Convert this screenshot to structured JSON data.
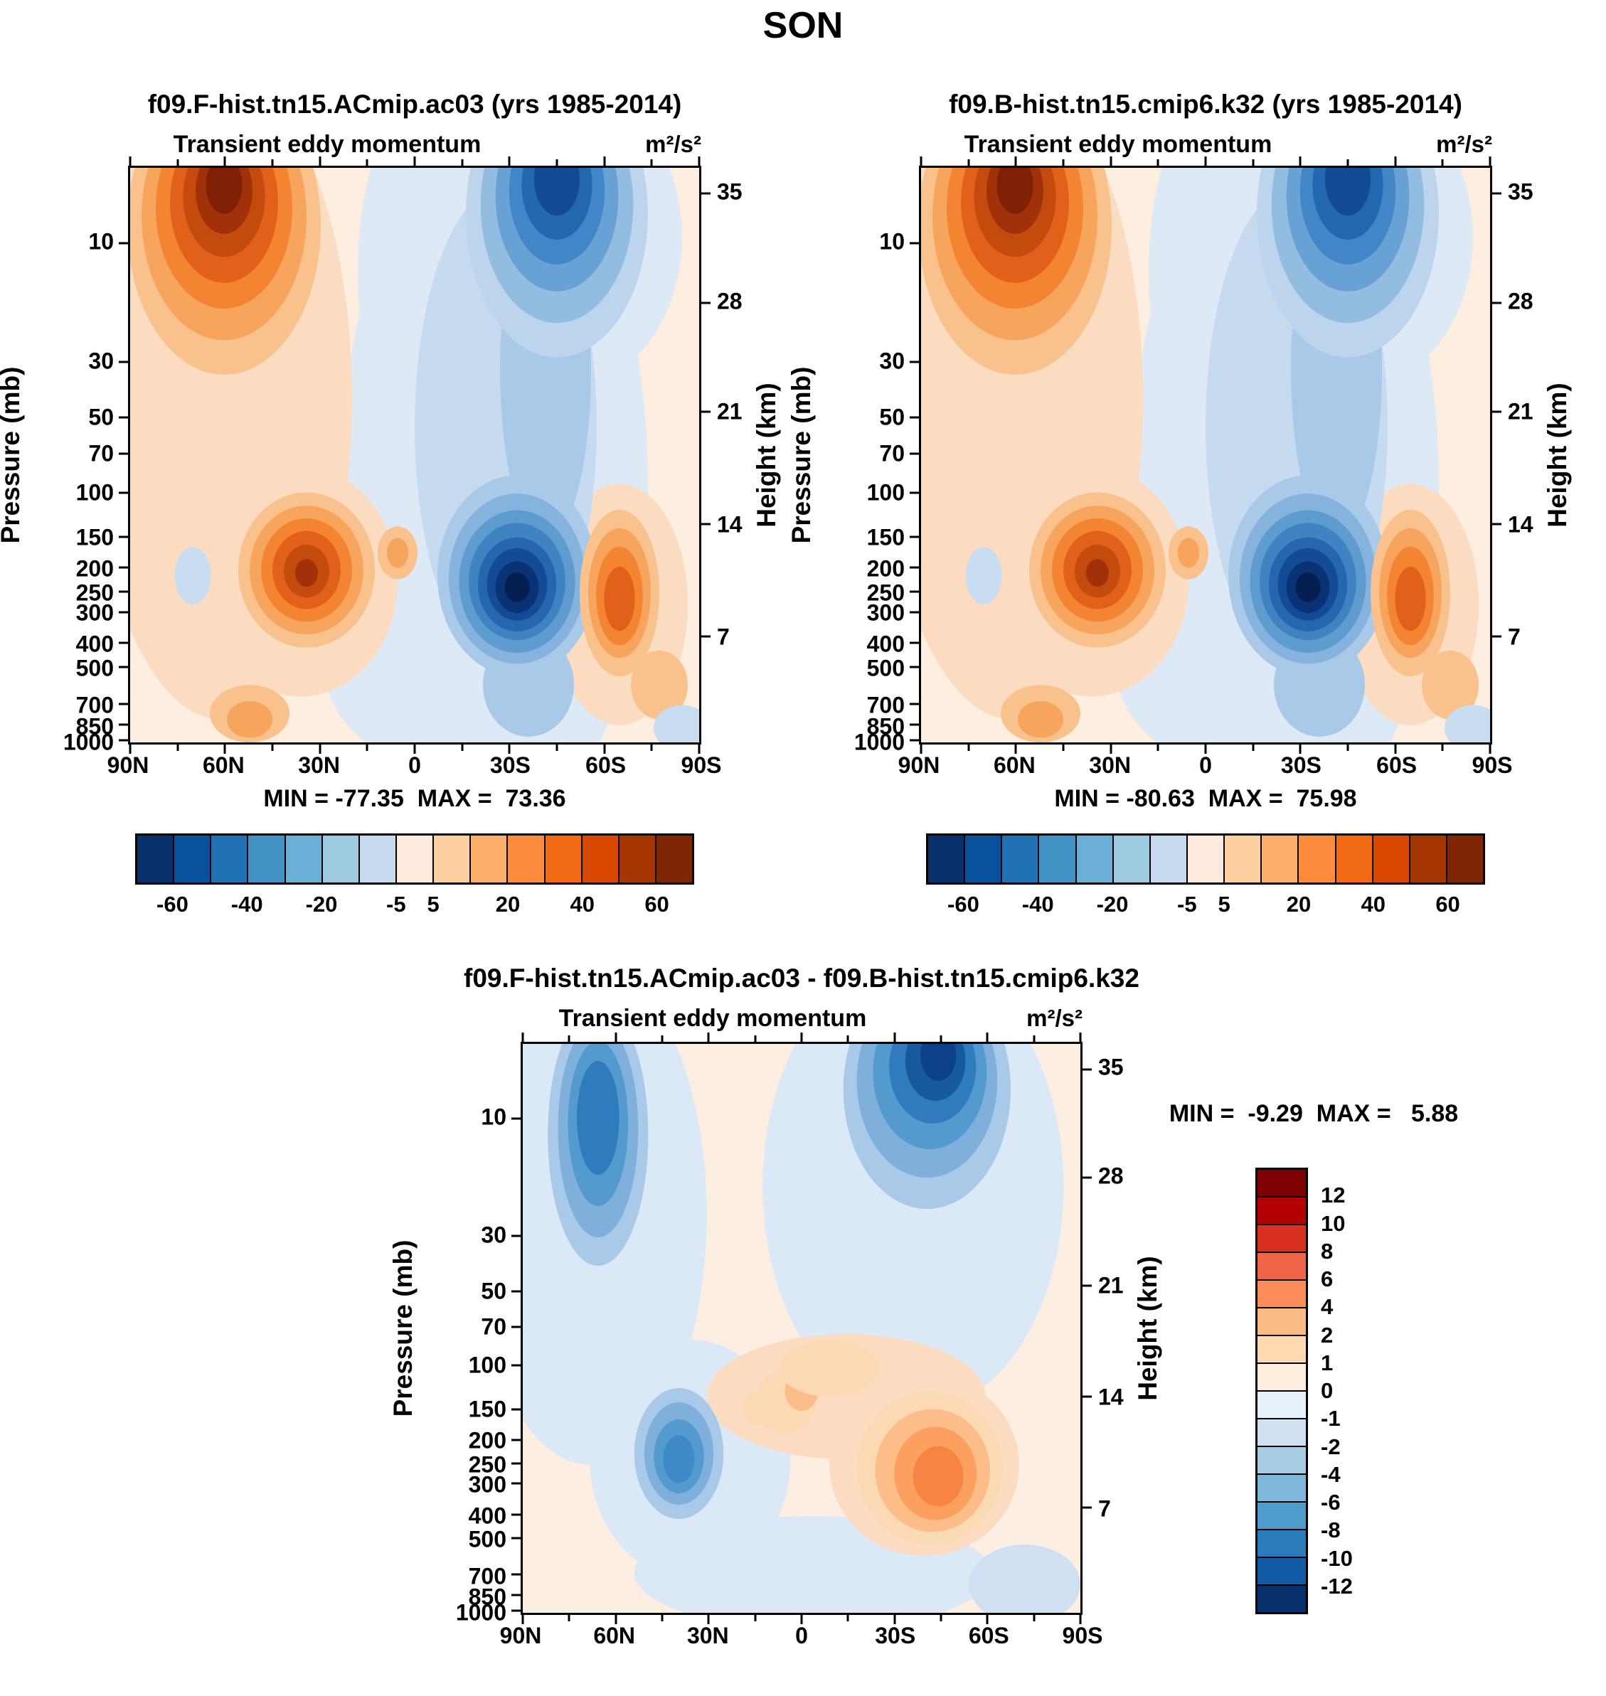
{
  "page": {
    "title": "SON"
  },
  "chart_data": [
    {
      "type": "filled_contour",
      "title": "f09.F-hist.tn15.ACmip.ac03 (yrs 1985-2014)",
      "field_title": "Transient eddy momentum",
      "units": "m²/s²",
      "minmax": "MIN = -77.35  MAX =  73.36",
      "bg": "#fdeee0",
      "yaxis_left": {
        "label": "Pressure (mb)",
        "scale": "log",
        "ticks": [
          {
            "t": "10",
            "f": 13.1
          },
          {
            "t": "30",
            "f": 33.8
          },
          {
            "t": "50",
            "f": 43.5
          },
          {
            "t": "70",
            "f": 49.8
          },
          {
            "t": "100",
            "f": 56.5
          },
          {
            "t": "150",
            "f": 64.2
          },
          {
            "t": "200",
            "f": 69.6
          },
          {
            "t": "250",
            "f": 73.8
          },
          {
            "t": "300",
            "f": 77.3
          },
          {
            "t": "400",
            "f": 82.7
          },
          {
            "t": "500",
            "f": 86.9
          },
          {
            "t": "700",
            "f": 93.3
          },
          {
            "t": "850",
            "f": 96.9
          },
          {
            "t": "1000",
            "f": 99.6
          }
        ]
      },
      "yaxis_right": {
        "label": "Height (km)",
        "ticks": [
          {
            "t": "35",
            "f": 4.5
          },
          {
            "t": "28",
            "f": 23.5
          },
          {
            "t": "21",
            "f": 42.5
          },
          {
            "t": "14",
            "f": 62
          },
          {
            "t": "7",
            "f": 81.5
          }
        ]
      },
      "xaxis": {
        "ticks": [
          {
            "t": "90N",
            "f": 0
          },
          {
            "t": "60N",
            "f": 16.67
          },
          {
            "t": "30N",
            "f": 33.33
          },
          {
            "t": "0",
            "f": 50
          },
          {
            "t": "30S",
            "f": 66.67
          },
          {
            "t": "60S",
            "f": 83.33
          },
          {
            "t": "90S",
            "f": 100
          }
        ],
        "minor": [
          8.33,
          25,
          41.67,
          58.33,
          75,
          91.67
        ]
      },
      "colorbar": {
        "orientation": "horizontal",
        "levels": [
          -60,
          -50,
          -40,
          -30,
          -20,
          -10,
          -5,
          5,
          10,
          20,
          30,
          40,
          50,
          60
        ],
        "colors": [
          "#08306b",
          "#08519c",
          "#2171b5",
          "#4292c6",
          "#6baed6",
          "#9ecae1",
          "#c6dbef",
          "#fdeadd",
          "#fdd0a2",
          "#fdae6b",
          "#fd8d3c",
          "#f16913",
          "#d94801",
          "#a63603",
          "#7f2704"
        ],
        "labels": [
          {
            "t": "-60",
            "f": 6.67
          },
          {
            "t": "-40",
            "f": 20
          },
          {
            "t": "-20",
            "f": 33.33
          },
          {
            "t": "-5",
            "f": 46.67
          },
          {
            "t": "5",
            "f": 53.33
          },
          {
            "t": "20",
            "f": 66.67
          },
          {
            "t": "40",
            "f": 80
          },
          {
            "t": "60",
            "f": 93.33
          }
        ]
      },
      "features": [
        [
          64,
          55,
          27,
          62,
          "#dde9f5"
        ],
        [
          50,
          18,
          10,
          28,
          "#dde9f5"
        ],
        [
          77,
          12,
          20,
          26,
          "#dde9f5"
        ],
        [
          54,
          86,
          20,
          18,
          "#dde9f5"
        ],
        [
          16,
          40,
          23,
          56,
          "#fbdcc0"
        ],
        [
          30,
          72,
          17,
          20,
          "#fbdcc0"
        ],
        [
          86,
          76,
          12,
          21,
          "#fbdcc0"
        ],
        [
          66,
          45,
          16,
          42,
          "#c6daf0"
        ],
        [
          73,
          35,
          8,
          30,
          "#a8c9e8"
        ],
        [
          16.5,
          10,
          17,
          26,
          "#f9c28c"
        ],
        [
          16.5,
          8.5,
          14.5,
          21.5,
          "#f7a55c"
        ],
        [
          16.5,
          7,
          12,
          17.5,
          "#f28432"
        ],
        [
          16.5,
          6,
          9.5,
          14,
          "#e2611a"
        ],
        [
          16.5,
          5,
          7.2,
          10.5,
          "#c44a0e"
        ],
        [
          16.5,
          4,
          5,
          7.5,
          "#a03108"
        ],
        [
          16.5,
          3,
          3.2,
          5,
          "#7d2004"
        ],
        [
          31,
          70,
          12,
          13.5,
          "#f9c28c"
        ],
        [
          31,
          70,
          10,
          11.2,
          "#f7a55c"
        ],
        [
          31,
          70,
          8,
          9,
          "#f28432"
        ],
        [
          31,
          70,
          6,
          6.8,
          "#e2611a"
        ],
        [
          31,
          70.2,
          4,
          4.6,
          "#c44a0e"
        ],
        [
          31,
          70.5,
          2,
          2.4,
          "#a03108"
        ],
        [
          47,
          67,
          3.5,
          4.6,
          "#f9c28c"
        ],
        [
          47,
          67,
          1.9,
          2.6,
          "#f7a55c"
        ],
        [
          21,
          95,
          7,
          5,
          "#f9c28c"
        ],
        [
          21,
          96,
          4,
          3.2,
          "#f7a55c"
        ],
        [
          11,
          71,
          3.2,
          5,
          "#c9ddf1"
        ],
        [
          75,
          8,
          16,
          25,
          "#bcd4ec"
        ],
        [
          75,
          6.5,
          13.4,
          20.5,
          "#93bce1"
        ],
        [
          75,
          5,
          10.8,
          16.5,
          "#68a2d4"
        ],
        [
          75,
          4,
          8.4,
          12.8,
          "#4186c6"
        ],
        [
          75,
          3,
          6.2,
          9.5,
          "#2268b0"
        ],
        [
          75,
          2,
          4,
          6.3,
          "#124a95"
        ],
        [
          70,
          90,
          8,
          9,
          "#a8c9e8"
        ],
        [
          68,
          71,
          14,
          17.5,
          "#a8c9e8"
        ],
        [
          68,
          71.5,
          12,
          14.8,
          "#85b3dd"
        ],
        [
          68,
          72,
          10.2,
          12.4,
          "#5e9bce"
        ],
        [
          68,
          72,
          8.5,
          10.2,
          "#3f83c1"
        ],
        [
          68,
          72.5,
          6.9,
          8.2,
          "#2566ae"
        ],
        [
          68,
          72.5,
          5.3,
          6.3,
          "#144b96"
        ],
        [
          68,
          73,
          3.8,
          4.5,
          "#0a3376"
        ],
        [
          68,
          73,
          2.2,
          2.6,
          "#061f52"
        ],
        [
          86,
          74,
          7,
          14.5,
          "#f9c28c"
        ],
        [
          86,
          74,
          5.5,
          11.3,
          "#f7a55c"
        ],
        [
          86,
          74.5,
          4.1,
          8.6,
          "#f28432"
        ],
        [
          86,
          75,
          2.7,
          5.6,
          "#e2611a"
        ],
        [
          93,
          90,
          5,
          6,
          "#f9c28c"
        ],
        [
          97,
          97.5,
          5,
          4,
          "#c9ddf1"
        ]
      ]
    },
    {
      "type": "filled_contour",
      "title": "f09.B-hist.tn15.cmip6.k32 (yrs 1985-2014)",
      "field_title": "Transient eddy momentum",
      "units": "m²/s²",
      "minmax": "MIN = -80.63  MAX =  75.98",
      "bg": "#fdeee0",
      "features_ref": 0,
      "yaxis_left": {
        "label": "Pressure (mb)",
        "scale": "log",
        "ticks": [
          {
            "t": "10",
            "f": 13.1
          },
          {
            "t": "30",
            "f": 33.8
          },
          {
            "t": "50",
            "f": 43.5
          },
          {
            "t": "70",
            "f": 49.8
          },
          {
            "t": "100",
            "f": 56.5
          },
          {
            "t": "150",
            "f": 64.2
          },
          {
            "t": "200",
            "f": 69.6
          },
          {
            "t": "250",
            "f": 73.8
          },
          {
            "t": "300",
            "f": 77.3
          },
          {
            "t": "400",
            "f": 82.7
          },
          {
            "t": "500",
            "f": 86.9
          },
          {
            "t": "700",
            "f": 93.3
          },
          {
            "t": "850",
            "f": 96.9
          },
          {
            "t": "1000",
            "f": 99.6
          }
        ]
      },
      "yaxis_right": {
        "label": "Height (km)",
        "ticks": [
          {
            "t": "35",
            "f": 4.5
          },
          {
            "t": "28",
            "f": 23.5
          },
          {
            "t": "21",
            "f": 42.5
          },
          {
            "t": "14",
            "f": 62
          },
          {
            "t": "7",
            "f": 81.5
          }
        ]
      },
      "xaxis": {
        "ticks": [
          {
            "t": "90N",
            "f": 0
          },
          {
            "t": "60N",
            "f": 16.67
          },
          {
            "t": "30N",
            "f": 33.33
          },
          {
            "t": "0",
            "f": 50
          },
          {
            "t": "30S",
            "f": 66.67
          },
          {
            "t": "60S",
            "f": 83.33
          },
          {
            "t": "90S",
            "f": 100
          }
        ],
        "minor": [
          8.33,
          25,
          41.67,
          58.33,
          75,
          91.67
        ]
      },
      "colorbar": {
        "orientation": "horizontal",
        "levels": [
          -60,
          -50,
          -40,
          -30,
          -20,
          -10,
          -5,
          5,
          10,
          20,
          30,
          40,
          50,
          60
        ],
        "colors": [
          "#08306b",
          "#08519c",
          "#2171b5",
          "#4292c6",
          "#6baed6",
          "#9ecae1",
          "#c6dbef",
          "#fdeadd",
          "#fdd0a2",
          "#fdae6b",
          "#fd8d3c",
          "#f16913",
          "#d94801",
          "#a63603",
          "#7f2704"
        ],
        "labels": [
          {
            "t": "-60",
            "f": 6.67
          },
          {
            "t": "-40",
            "f": 20
          },
          {
            "t": "-20",
            "f": 33.33
          },
          {
            "t": "-5",
            "f": 46.67
          },
          {
            "t": "5",
            "f": 53.33
          },
          {
            "t": "20",
            "f": 66.67
          },
          {
            "t": "40",
            "f": 80
          },
          {
            "t": "60",
            "f": 93.33
          }
        ]
      }
    },
    {
      "type": "filled_contour_difference",
      "title": "f09.F-hist.tn15.ACmip.ac03 - f09.B-hist.tn15.cmip6.k32",
      "field_title": "Transient eddy momentum",
      "units": "m²/s²",
      "minmax": "MIN =  -9.29  MAX =   5.88",
      "bg": "#fcefe2",
      "yaxis_left": {
        "label": "Pressure (mb)",
        "scale": "log",
        "ticks": [
          {
            "t": "10",
            "f": 13.1
          },
          {
            "t": "30",
            "f": 33.8
          },
          {
            "t": "50",
            "f": 43.5
          },
          {
            "t": "70",
            "f": 49.8
          },
          {
            "t": "100",
            "f": 56.5
          },
          {
            "t": "150",
            "f": 64.2
          },
          {
            "t": "200",
            "f": 69.6
          },
          {
            "t": "250",
            "f": 73.8
          },
          {
            "t": "300",
            "f": 77.3
          },
          {
            "t": "400",
            "f": 82.7
          },
          {
            "t": "500",
            "f": 86.9
          },
          {
            "t": "700",
            "f": 93.3
          },
          {
            "t": "850",
            "f": 96.9
          },
          {
            "t": "1000",
            "f": 99.6
          }
        ]
      },
      "yaxis_right": {
        "label": "Height (km)",
        "ticks": [
          {
            "t": "35",
            "f": 4.5
          },
          {
            "t": "28",
            "f": 23.5
          },
          {
            "t": "21",
            "f": 42.5
          },
          {
            "t": "14",
            "f": 62
          },
          {
            "t": "7",
            "f": 81.5
          }
        ]
      },
      "xaxis": {
        "ticks": [
          {
            "t": "90N",
            "f": 0
          },
          {
            "t": "60N",
            "f": 16.67
          },
          {
            "t": "30N",
            "f": 33.33
          },
          {
            "t": "0",
            "f": 50
          },
          {
            "t": "30S",
            "f": 66.67
          },
          {
            "t": "60S",
            "f": 83.33
          },
          {
            "t": "90S",
            "f": 100
          }
        ],
        "minor": [
          8.33,
          25,
          41.67,
          58.33,
          75,
          91.67
        ]
      },
      "colorbar": {
        "orientation": "vertical",
        "levels": [
          12,
          10,
          8,
          6,
          4,
          2,
          1,
          0,
          -1,
          -2,
          -4,
          -6,
          -8,
          -10,
          -12
        ],
        "colors": [
          "#7f0000",
          "#b30000",
          "#d7301f",
          "#ef6548",
          "#fc8d59",
          "#fdbb84",
          "#fdd8b0",
          "#fdeedd",
          "#e6f0f9",
          "#cfe1f2",
          "#a8cee4",
          "#7db8da",
          "#4f9bcd",
          "#2b7bba",
          "#105ba4",
          "#08306b"
        ],
        "labels": [
          {
            "t": "12",
            "f": 6.25
          },
          {
            "t": "10",
            "f": 12.5
          },
          {
            "t": "8",
            "f": 18.75
          },
          {
            "t": "6",
            "f": 25
          },
          {
            "t": "4",
            "f": 31.25
          },
          {
            "t": "2",
            "f": 37.5
          },
          {
            "t": "1",
            "f": 43.75
          },
          {
            "t": "0",
            "f": 50
          },
          {
            "t": "-1",
            "f": 56.25
          },
          {
            "t": "-2",
            "f": 62.5
          },
          {
            "t": "-4",
            "f": 68.75
          },
          {
            "t": "-6",
            "f": 75
          },
          {
            "t": "-8",
            "f": 81.25
          },
          {
            "t": "-10",
            "f": 87.5
          },
          {
            "t": "-12",
            "f": 93.75
          }
        ]
      },
      "features": [
        [
          12,
          30,
          21,
          44,
          "#dbe8f6"
        ],
        [
          70,
          25,
          27,
          40,
          "#dbe8f6"
        ],
        [
          30,
          73,
          18,
          21,
          "#dbe8f6"
        ],
        [
          52,
          93,
          32,
          10,
          "#dbe8f6"
        ],
        [
          90,
          95,
          10,
          7,
          "#cfe0f2"
        ],
        [
          58,
          62,
          25,
          11,
          "#fbdcc0"
        ],
        [
          72,
          74,
          17,
          16,
          "#fbdcc0"
        ],
        [
          13.5,
          16,
          9,
          23,
          "#a8c9e8"
        ],
        [
          13.5,
          15,
          7.2,
          19,
          "#7fb0db"
        ],
        [
          13.5,
          14,
          5.4,
          14.5,
          "#539bce"
        ],
        [
          13.5,
          13,
          3.8,
          10,
          "#2f7bbd"
        ],
        [
          72.5,
          8,
          15,
          21,
          "#a8c9e8"
        ],
        [
          72.5,
          6.5,
          12.6,
          17,
          "#7fb0db"
        ],
        [
          73,
          5,
          10.2,
          13.5,
          "#539bce"
        ],
        [
          73.5,
          4,
          7.8,
          10,
          "#2f7bbd"
        ],
        [
          74,
          3,
          5.4,
          7,
          "#16599f"
        ],
        [
          74.5,
          2,
          3.2,
          4.5,
          "#0d4187"
        ],
        [
          28,
          72,
          8,
          11.5,
          "#a8c9e8"
        ],
        [
          28,
          72,
          6.2,
          9,
          "#7fb0db"
        ],
        [
          28,
          72.5,
          4.5,
          6.5,
          "#539bce"
        ],
        [
          28,
          73,
          2.8,
          4.2,
          "#3f8ac6"
        ],
        [
          73,
          74.5,
          13,
          13.5,
          "#fbd9b5"
        ],
        [
          73.5,
          75,
          10.3,
          10.8,
          "#fcbd88"
        ],
        [
          74,
          75.5,
          7.4,
          8.2,
          "#fba05f"
        ],
        [
          74.5,
          76,
          4.5,
          5.3,
          "#f68443"
        ],
        [
          47,
          63,
          5.5,
          5.5,
          "#fbd9b5"
        ],
        [
          50,
          61,
          3,
          3.5,
          "#fcbd88"
        ],
        [
          42,
          64,
          2.6,
          3,
          "#fbd9b5"
        ],
        [
          55,
          57,
          9,
          5,
          "#fbd9b5"
        ]
      ]
    }
  ]
}
